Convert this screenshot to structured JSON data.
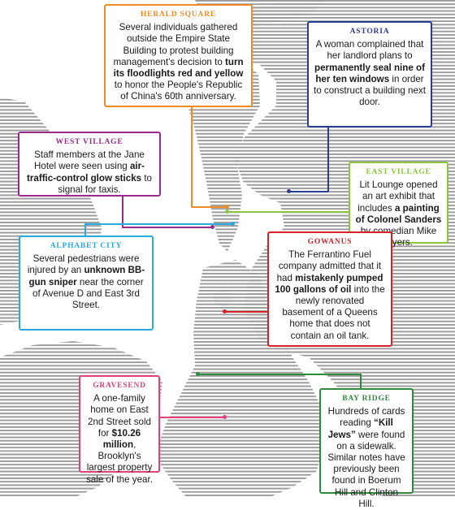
{
  "callouts": [
    {
      "id": "herald-square",
      "title": "HERALD SQUARE",
      "color": "#f08a24",
      "parts": [
        {
          "t": "Several individuals gathered outside the Empire State Building to protest building management's decision to "
        },
        {
          "t": "turn its floodlights red and yellow",
          "b": true
        },
        {
          "t": " to honor the People's Republic of China's 60th anniversary."
        }
      ]
    },
    {
      "id": "astoria",
      "title": "ASTORIA",
      "color": "#2b3d8f",
      "parts": [
        {
          "t": "A woman complained that her landlord plans to "
        },
        {
          "t": "permanently seal nine of her ten windows",
          "b": true
        },
        {
          "t": " in order to construct a building next door."
        }
      ]
    },
    {
      "id": "west-village",
      "title": "WEST VILLAGE",
      "color": "#9c2a8e",
      "parts": [
        {
          "t": "Staff members at the Jane Hotel were seen using "
        },
        {
          "t": "air-traffic-control glow sticks",
          "b": true
        },
        {
          "t": " to signal for taxis."
        }
      ]
    },
    {
      "id": "east-village",
      "title": "EAST VILLAGE",
      "color": "#8cc63f",
      "parts": [
        {
          "t": "Lit Lounge opened an art exhibit that includes "
        },
        {
          "t": "a painting of Colonel Sanders",
          "b": true
        },
        {
          "t": " by comedian Mike Myers."
        }
      ]
    },
    {
      "id": "alphabet-city",
      "title": "ALPHABET CITY",
      "color": "#29abe2",
      "parts": [
        {
          "t": "Several pedestrians were injured by an "
        },
        {
          "t": "unknown BB-gun sniper",
          "b": true
        },
        {
          "t": " near the corner of Avenue D and East 3rd Street."
        }
      ]
    },
    {
      "id": "gowanus",
      "title": "GOWANUS",
      "color": "#d6232b",
      "parts": [
        {
          "t": "The Ferrantino Fuel company admitted that it had "
        },
        {
          "t": "mistakenly pumped 100 gallons of oil",
          "b": true
        },
        {
          "t": " into the newly renovated basement of a Queens home that does not contain an oil tank."
        }
      ]
    },
    {
      "id": "gravesend",
      "title": "GRAVESEND",
      "color": "#e0417a",
      "parts": [
        {
          "t": "A one-family home on East 2nd Street sold for "
        },
        {
          "t": "$10.26 million",
          "b": true
        },
        {
          "t": ", Brooklyn's largest property sale of the year."
        }
      ]
    },
    {
      "id": "bay-ridge",
      "title": "BAY RIDGE",
      "color": "#2e8b3e",
      "parts": [
        {
          "t": "Hundreds of cards reading "
        },
        {
          "t": "“Kill Jews”",
          "b": true
        },
        {
          "t": " were found on a sidewalk. Similar notes have previously been found in Boerum Hill and Clinton Hill."
        }
      ]
    }
  ]
}
